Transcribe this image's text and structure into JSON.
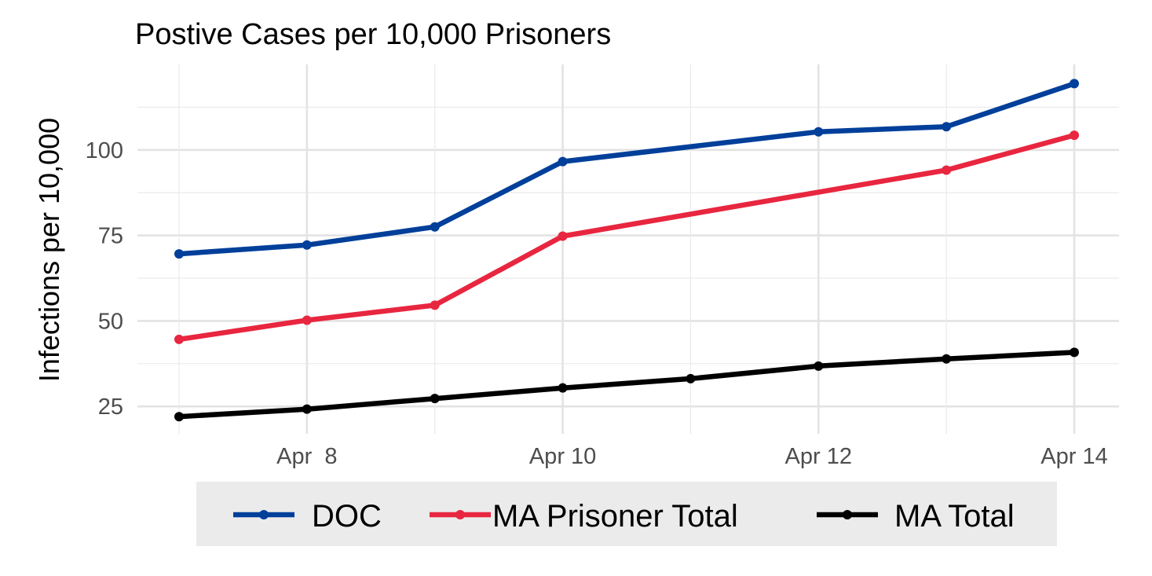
{
  "chart_data": {
    "type": "line",
    "title": "Postive Cases per 10,000 Prisoners",
    "xlabel": "",
    "ylabel": "Infections per 10,000",
    "x": [
      "2020-04-07",
      "2020-04-08",
      "2020-04-09",
      "2020-04-10",
      "2020-04-11",
      "2020-04-12",
      "2020-04-13",
      "2020-04-14"
    ],
    "x_ticks": [
      {
        "date": "2020-04-08",
        "label": "Apr  8"
      },
      {
        "date": "2020-04-10",
        "label": "Apr 10"
      },
      {
        "date": "2020-04-12",
        "label": "Apr 12"
      },
      {
        "date": "2020-04-14",
        "label": "Apr 14"
      }
    ],
    "xlim": [
      "2020-04-07",
      "2020-04-14"
    ],
    "ylim": [
      17,
      125
    ],
    "y_ticks": [
      25,
      50,
      75,
      100
    ],
    "y_tick_labels": [
      "25",
      "50",
      "75",
      "100"
    ],
    "grid": true,
    "legend_position": "bottom",
    "series": [
      {
        "name": "DOC",
        "color": "#003f9a",
        "points": [
          {
            "x": "2020-04-07",
            "y": 69.6
          },
          {
            "x": "2020-04-08",
            "y": 72.2
          },
          {
            "x": "2020-04-09",
            "y": 77.5
          },
          {
            "x": "2020-04-10",
            "y": 96.6
          },
          {
            "x": "2020-04-12",
            "y": 105.3
          },
          {
            "x": "2020-04-13",
            "y": 106.8
          },
          {
            "x": "2020-04-14",
            "y": 119.4
          }
        ]
      },
      {
        "name": "MA Prisoner Total",
        "color": "#e8263f",
        "points": [
          {
            "x": "2020-04-07",
            "y": 44.6
          },
          {
            "x": "2020-04-08",
            "y": 50.2
          },
          {
            "x": "2020-04-09",
            "y": 54.6
          },
          {
            "x": "2020-04-10",
            "y": 74.8
          },
          {
            "x": "2020-04-13",
            "y": 94.1
          },
          {
            "x": "2020-04-14",
            "y": 104.3
          }
        ]
      },
      {
        "name": "MA Total",
        "color": "#000000",
        "points": [
          {
            "x": "2020-04-07",
            "y": 22.0
          },
          {
            "x": "2020-04-08",
            "y": 24.2
          },
          {
            "x": "2020-04-09",
            "y": 27.3
          },
          {
            "x": "2020-04-10",
            "y": 30.4
          },
          {
            "x": "2020-04-11",
            "y": 33.1
          },
          {
            "x": "2020-04-12",
            "y": 36.8
          },
          {
            "x": "2020-04-13",
            "y": 38.9
          },
          {
            "x": "2020-04-14",
            "y": 40.8
          }
        ]
      }
    ]
  }
}
